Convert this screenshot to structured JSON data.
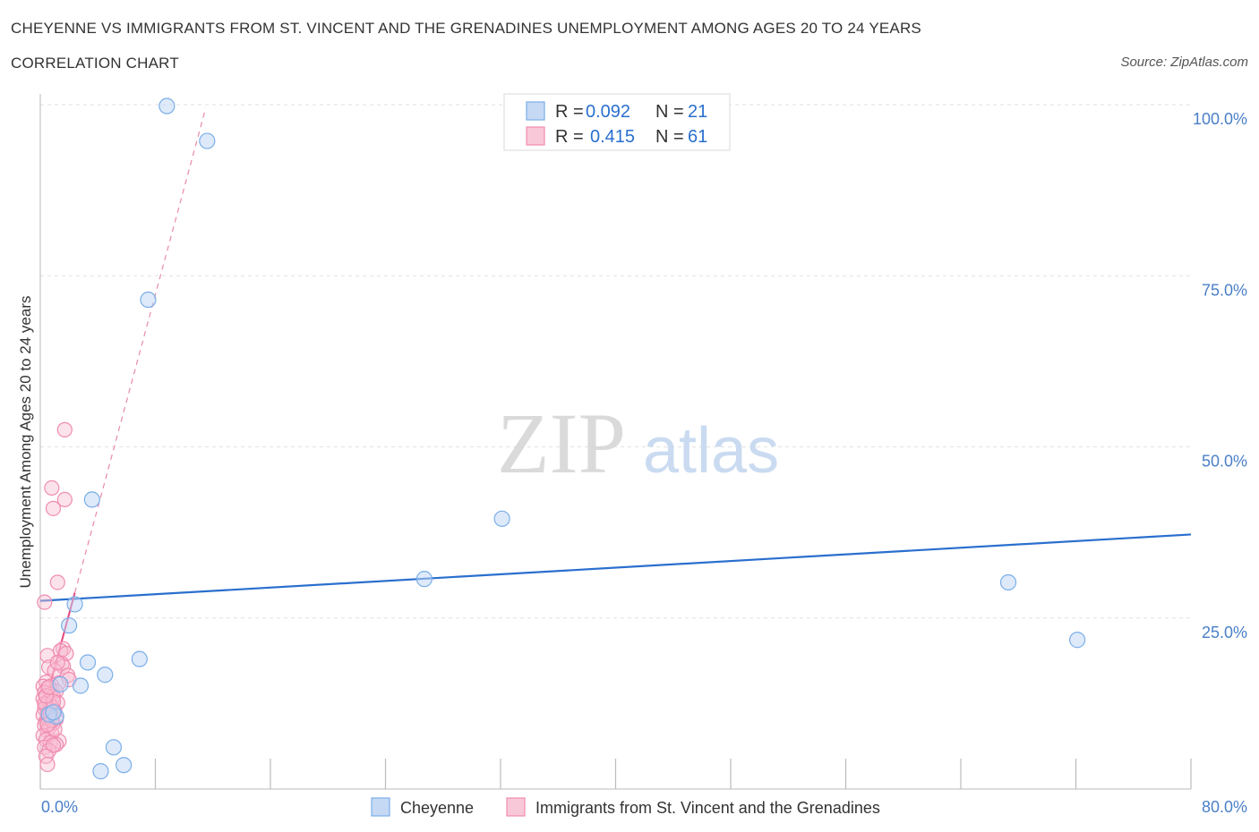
{
  "title": "CHEYENNE VS IMMIGRANTS FROM ST. VINCENT AND THE GRENADINES UNEMPLOYMENT AMONG AGES 20 TO 24 YEARS",
  "subtitle": "CORRELATION CHART",
  "source": "Source: ZipAtlas.com",
  "watermark": {
    "zip": "ZIP",
    "atlas": "atlas"
  },
  "legend": {
    "items": [
      {
        "r_label": "R =",
        "r_value": "0.092",
        "n_label": "N =",
        "n_value": "21"
      },
      {
        "r_label": "R =",
        "r_value": "0.415",
        "n_label": "N =",
        "n_value": "61"
      }
    ]
  },
  "chart_data": {
    "type": "scatter",
    "title": "CHEYENNE VS IMMIGRANTS FROM ST. VINCENT AND THE GRENADINES UNEMPLOYMENT AMONG AGES 20 TO 24 YEARS",
    "xlabel": "",
    "ylabel": "Unemployment Among Ages 20 to 24 years",
    "xlim": [
      0,
      80
    ],
    "ylim": [
      0,
      100
    ],
    "x_tick_labels": [
      "0.0%",
      "80.0%"
    ],
    "y_ticks": [
      25,
      50,
      75,
      100
    ],
    "y_tick_labels": [
      "25.0%",
      "50.0%",
      "75.0%",
      "100.0%"
    ],
    "grid": true,
    "legend_position": "top-center",
    "colors": {
      "cheyenne": "#7aaee8",
      "svg": "#f08cb0",
      "cheyenne_line": "#2a6fce",
      "svg_line": "#e8457e"
    },
    "series": [
      {
        "name": "Cheyenne",
        "points": [
          [
            8.8,
            99.8
          ],
          [
            11.6,
            94.7
          ],
          [
            7.5,
            71.5
          ],
          [
            3.6,
            42.3
          ],
          [
            32.1,
            39.5
          ],
          [
            26.7,
            30.7
          ],
          [
            2.4,
            27.0
          ],
          [
            67.3,
            30.2
          ],
          [
            2.0,
            23.9
          ],
          [
            72.1,
            21.8
          ],
          [
            6.9,
            19.0
          ],
          [
            3.3,
            18.5
          ],
          [
            4.5,
            16.7
          ],
          [
            1.4,
            15.3
          ],
          [
            2.8,
            15.1
          ],
          [
            1.1,
            10.6
          ],
          [
            0.6,
            10.9
          ],
          [
            5.1,
            6.1
          ],
          [
            5.8,
            3.5
          ],
          [
            4.2,
            2.6
          ],
          [
            0.9,
            11.2
          ]
        ],
        "trend": {
          "x": [
            0,
            80
          ],
          "y": [
            27.5,
            37.2
          ]
        }
      },
      {
        "name": "Immigrants from St. Vincent and the Grenadines",
        "points": [
          [
            1.7,
            52.5
          ],
          [
            0.8,
            44.0
          ],
          [
            1.7,
            42.3
          ],
          [
            0.9,
            41.0
          ],
          [
            1.2,
            30.2
          ],
          [
            0.3,
            27.3
          ],
          [
            1.6,
            20.5
          ],
          [
            1.4,
            20.2
          ],
          [
            1.8,
            19.8
          ],
          [
            0.5,
            19.5
          ],
          [
            1.5,
            18.3
          ],
          [
            1.6,
            17.9
          ],
          [
            0.6,
            17.8
          ],
          [
            1.0,
            17.3
          ],
          [
            1.9,
            16.6
          ],
          [
            2.0,
            16.0
          ],
          [
            0.4,
            15.6
          ],
          [
            1.3,
            15.5
          ],
          [
            0.8,
            15.1
          ],
          [
            0.2,
            15.0
          ],
          [
            0.5,
            14.7
          ],
          [
            1.1,
            14.3
          ],
          [
            0.3,
            14.1
          ],
          [
            0.7,
            13.8
          ],
          [
            0.9,
            13.5
          ],
          [
            0.2,
            13.2
          ],
          [
            0.6,
            12.9
          ],
          [
            1.2,
            12.6
          ],
          [
            0.4,
            12.3
          ],
          [
            0.8,
            12.0
          ],
          [
            0.3,
            11.7
          ],
          [
            1.0,
            11.4
          ],
          [
            0.5,
            11.1
          ],
          [
            0.2,
            10.8
          ],
          [
            0.7,
            10.5
          ],
          [
            1.1,
            10.2
          ],
          [
            0.4,
            9.9
          ],
          [
            0.9,
            9.6
          ],
          [
            0.3,
            9.3
          ],
          [
            0.6,
            9.0
          ],
          [
            0.5,
            8.5
          ],
          [
            0.8,
            8.1
          ],
          [
            0.2,
            7.8
          ],
          [
            0.4,
            7.2
          ],
          [
            1.3,
            7.0
          ],
          [
            0.7,
            6.8
          ],
          [
            1.1,
            6.5
          ],
          [
            0.3,
            6.1
          ],
          [
            0.6,
            5.6
          ],
          [
            0.9,
            6.4
          ],
          [
            0.4,
            4.8
          ],
          [
            0.5,
            3.6
          ],
          [
            0.3,
            12.5
          ],
          [
            0.7,
            11.0
          ],
          [
            0.9,
            12.8
          ],
          [
            0.4,
            13.6
          ],
          [
            1.0,
            8.7
          ],
          [
            0.6,
            14.9
          ],
          [
            0.8,
            10.0
          ],
          [
            1.2,
            18.5
          ],
          [
            0.5,
            9.4
          ]
        ],
        "trend": {
          "x": [
            0,
            11.5
          ],
          "y": [
            10.0,
            99.5
          ]
        }
      }
    ]
  }
}
